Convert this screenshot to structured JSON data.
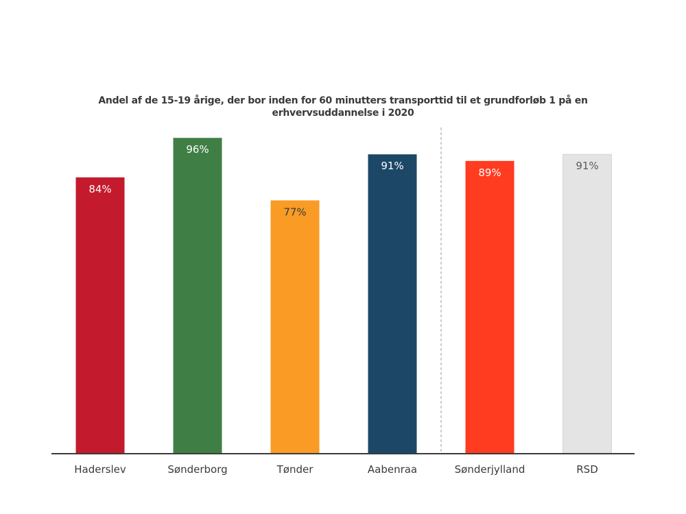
{
  "chart_data": {
    "type": "bar",
    "title": "Andel af de 15-19 årige, der bor inden for 60 minutters transporttid til et grundforløb 1 på en erhvervsuddannelse i 2020",
    "xlabel": "",
    "ylabel": "",
    "ylim": [
      0,
      100
    ],
    "grid": false,
    "categories": [
      "Haderslev",
      "Sønderborg",
      "Tønder",
      "Aabenraa",
      "Sønderjylland",
      "RSD"
    ],
    "values": [
      84,
      96,
      77,
      91,
      89,
      91
    ],
    "value_labels": [
      "84%",
      "96%",
      "77%",
      "91%",
      "89%",
      "91%"
    ],
    "colors": [
      "#c41a2e",
      "#3f7f45",
      "#f99b25",
      "#1d4767",
      "#ff3b20",
      "#e4e4e4"
    ],
    "label_colors": [
      "#ffffff",
      "#ffffff",
      "#3a3a3a",
      "#ffffff",
      "#ffffff",
      "#5a5a5a"
    ],
    "separator_after_index": 3
  }
}
